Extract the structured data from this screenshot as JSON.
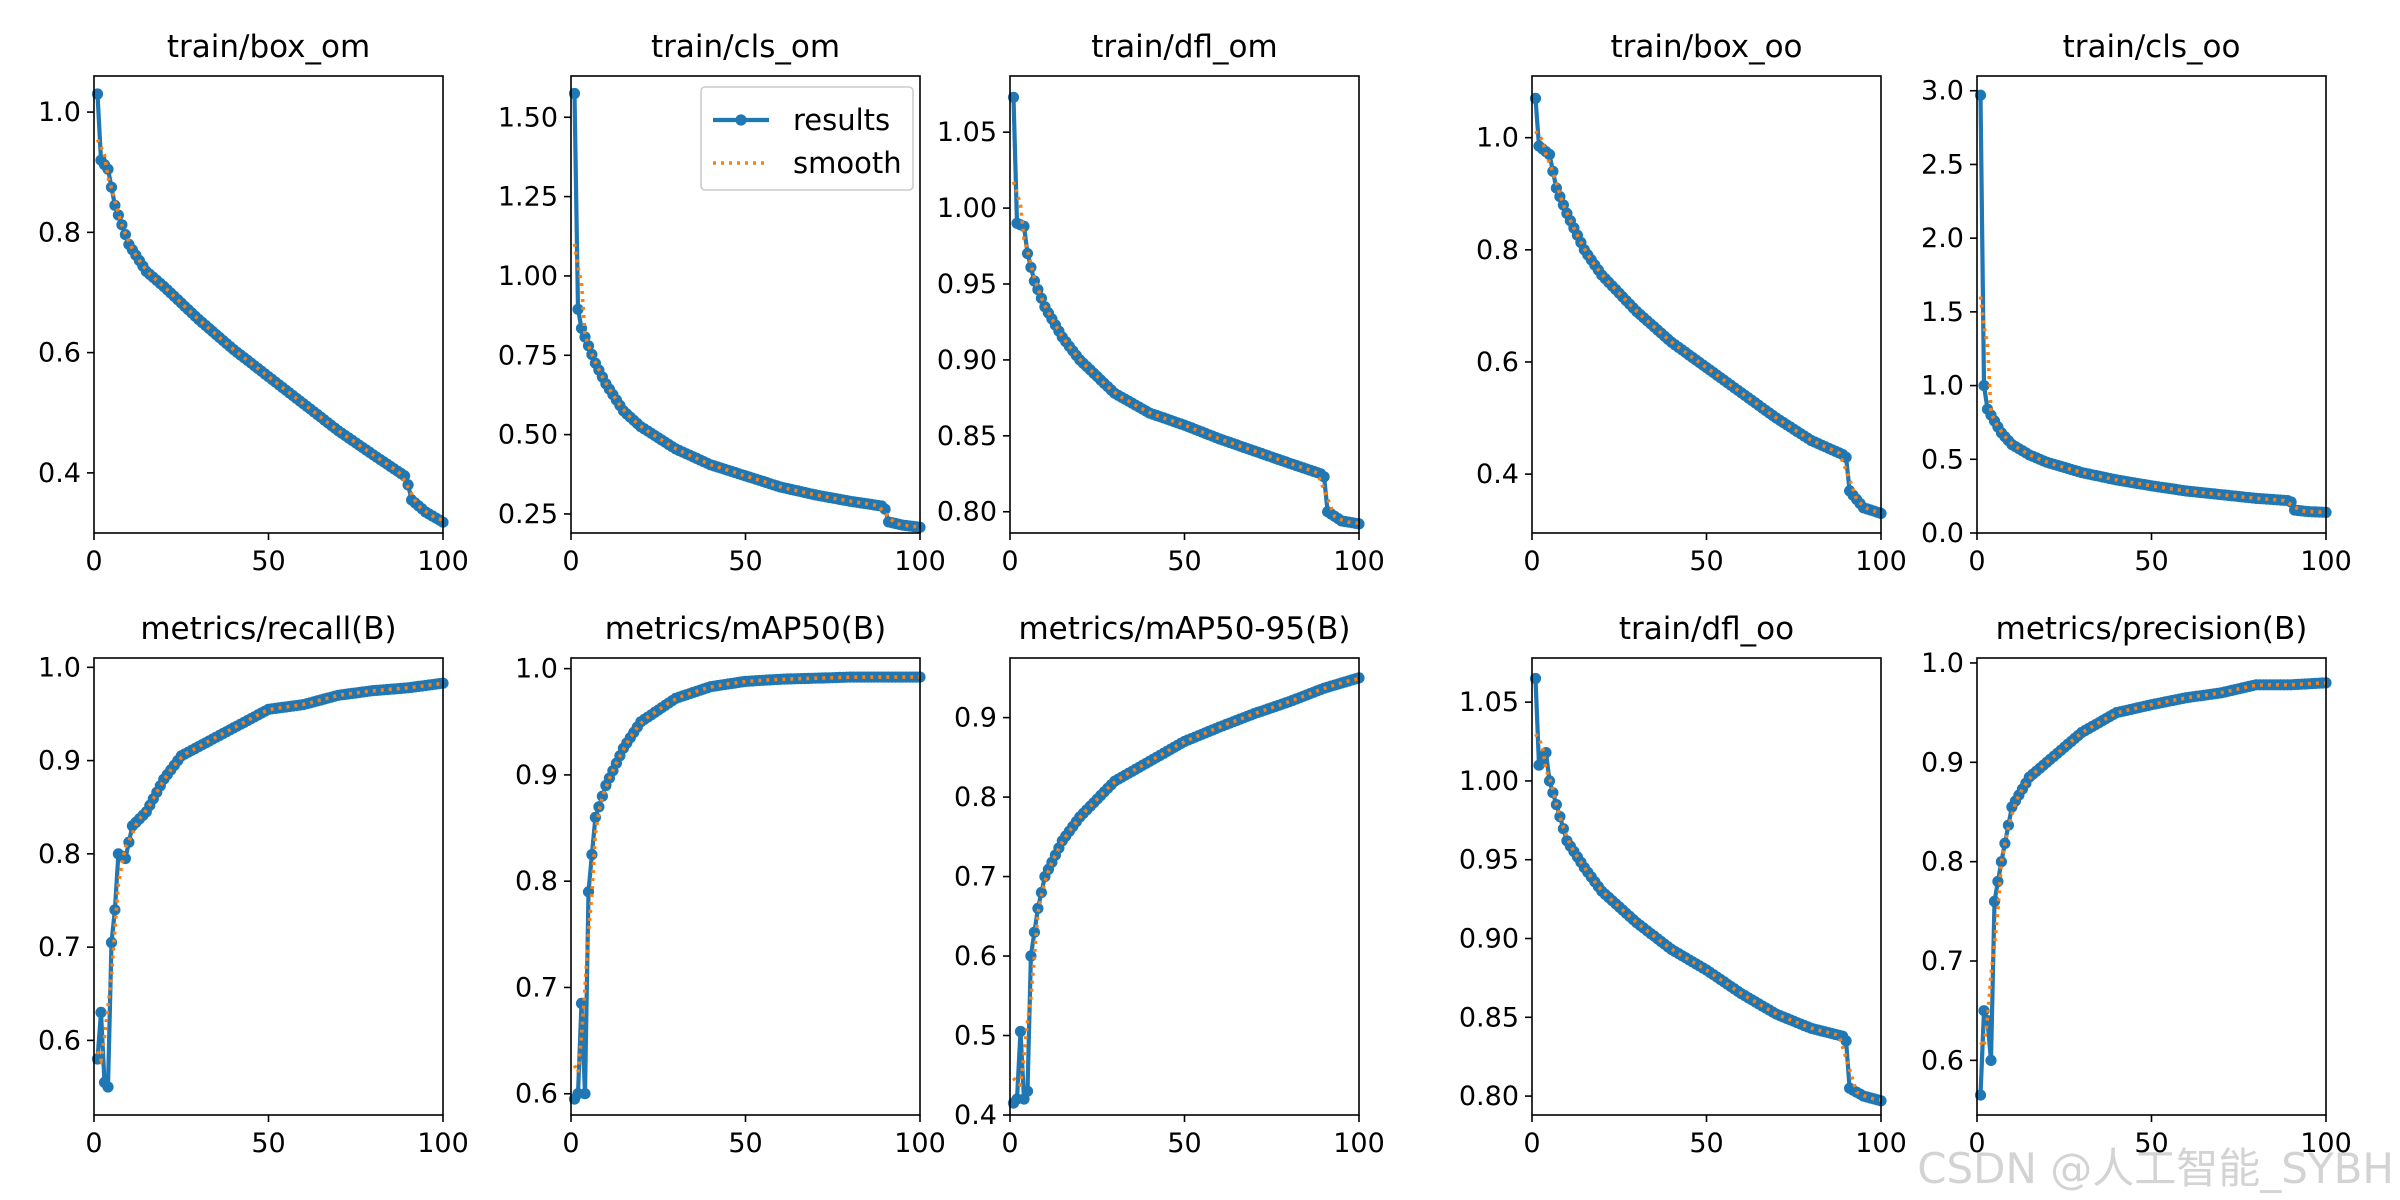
{
  "legend": {
    "results_label": "results",
    "smooth_label": "smooth",
    "panel": "train/cls_om",
    "placement": "upper-right"
  },
  "watermark": "CSDN @人工智能_SYBH",
  "colors": {
    "results": "#1f77b4",
    "smooth": "#ff7f0e",
    "axes": "#000000"
  },
  "chart_data": [
    {
      "type": "line",
      "title": "train/box_om",
      "xlim": [
        0,
        100
      ],
      "ylim": [
        0.3,
        1.06
      ],
      "xticks": [
        0,
        50,
        100
      ],
      "yticks": [
        0.4,
        0.6,
        0.8,
        1.0
      ],
      "ytick_labels": [
        "0.4",
        "0.6",
        "0.8",
        "1.0"
      ],
      "anchors": [
        [
          1,
          1.03
        ],
        [
          2,
          0.92
        ],
        [
          4,
          0.905
        ],
        [
          6,
          0.845
        ],
        [
          10,
          0.78
        ],
        [
          15,
          0.735
        ],
        [
          20,
          0.71
        ],
        [
          30,
          0.655
        ],
        [
          40,
          0.605
        ],
        [
          50,
          0.56
        ],
        [
          60,
          0.515
        ],
        [
          70,
          0.47
        ],
        [
          80,
          0.43
        ],
        [
          89,
          0.395
        ],
        [
          90,
          0.38
        ],
        [
          91,
          0.355
        ],
        [
          95,
          0.335
        ],
        [
          100,
          0.318
        ]
      ]
    },
    {
      "type": "line",
      "title": "train/cls_om",
      "xlim": [
        0,
        100
      ],
      "ylim": [
        0.19,
        1.63
      ],
      "xticks": [
        0,
        50,
        100
      ],
      "yticks": [
        0.25,
        0.5,
        0.75,
        1.0,
        1.25,
        1.5
      ],
      "ytick_labels": [
        "0.25",
        "0.50",
        "0.75",
        "1.00",
        "1.25",
        "1.50"
      ],
      "anchors": [
        [
          1,
          1.575
        ],
        [
          2,
          0.895
        ],
        [
          3,
          0.835
        ],
        [
          5,
          0.78
        ],
        [
          7,
          0.725
        ],
        [
          10,
          0.66
        ],
        [
          15,
          0.575
        ],
        [
          20,
          0.525
        ],
        [
          30,
          0.455
        ],
        [
          40,
          0.405
        ],
        [
          50,
          0.37
        ],
        [
          60,
          0.335
        ],
        [
          70,
          0.31
        ],
        [
          80,
          0.29
        ],
        [
          89,
          0.275
        ],
        [
          90,
          0.265
        ],
        [
          91,
          0.225
        ],
        [
          95,
          0.215
        ],
        [
          100,
          0.208
        ]
      ]
    },
    {
      "type": "line",
      "title": "train/dfl_om",
      "xlim": [
        0,
        100
      ],
      "ylim": [
        0.786,
        1.087
      ],
      "xticks": [
        0,
        50,
        100
      ],
      "yticks": [
        0.8,
        0.85,
        0.9,
        0.95,
        1.0,
        1.05
      ],
      "ytick_labels": [
        "0.80",
        "0.85",
        "0.90",
        "0.95",
        "1.00",
        "1.05"
      ],
      "anchors": [
        [
          1,
          1.073
        ],
        [
          2,
          0.99
        ],
        [
          4,
          0.988
        ],
        [
          5,
          0.97
        ],
        [
          7,
          0.952
        ],
        [
          10,
          0.935
        ],
        [
          15,
          0.915
        ],
        [
          20,
          0.9
        ],
        [
          30,
          0.878
        ],
        [
          40,
          0.865
        ],
        [
          50,
          0.857
        ],
        [
          60,
          0.848
        ],
        [
          70,
          0.84
        ],
        [
          80,
          0.832
        ],
        [
          89,
          0.825
        ],
        [
          90,
          0.823
        ],
        [
          91,
          0.8
        ],
        [
          95,
          0.794
        ],
        [
          100,
          0.792
        ]
      ]
    },
    {
      "type": "line",
      "title": "train/box_oo",
      "xlim": [
        0,
        100
      ],
      "ylim": [
        0.295,
        1.11
      ],
      "xticks": [
        0,
        50,
        100
      ],
      "yticks": [
        0.4,
        0.6,
        0.8,
        1.0
      ],
      "ytick_labels": [
        "0.4",
        "0.6",
        "0.8",
        "1.0"
      ],
      "anchors": [
        [
          1,
          1.07
        ],
        [
          2,
          0.985
        ],
        [
          5,
          0.97
        ],
        [
          7,
          0.91
        ],
        [
          10,
          0.865
        ],
        [
          15,
          0.8
        ],
        [
          20,
          0.755
        ],
        [
          30,
          0.69
        ],
        [
          40,
          0.635
        ],
        [
          50,
          0.59
        ],
        [
          60,
          0.545
        ],
        [
          70,
          0.5
        ],
        [
          80,
          0.46
        ],
        [
          89,
          0.435
        ],
        [
          90,
          0.43
        ],
        [
          91,
          0.37
        ],
        [
          95,
          0.34
        ],
        [
          100,
          0.33
        ]
      ]
    },
    {
      "type": "line",
      "title": "train/cls_oo",
      "xlim": [
        0,
        100
      ],
      "ylim": [
        0.0,
        3.1
      ],
      "xticks": [
        0,
        50,
        100
      ],
      "yticks": [
        0.0,
        0.5,
        1.0,
        1.5,
        2.0,
        2.5,
        3.0
      ],
      "ytick_labels": [
        "0.0",
        "0.5",
        "1.0",
        "1.5",
        "2.0",
        "2.5",
        "3.0"
      ],
      "anchors": [
        [
          1,
          2.97
        ],
        [
          2,
          1.0
        ],
        [
          3,
          0.84
        ],
        [
          5,
          0.76
        ],
        [
          7,
          0.68
        ],
        [
          10,
          0.6
        ],
        [
          15,
          0.53
        ],
        [
          20,
          0.48
        ],
        [
          30,
          0.41
        ],
        [
          40,
          0.36
        ],
        [
          50,
          0.32
        ],
        [
          60,
          0.285
        ],
        [
          70,
          0.26
        ],
        [
          80,
          0.235
        ],
        [
          89,
          0.22
        ],
        [
          90,
          0.21
        ],
        [
          91,
          0.155
        ],
        [
          95,
          0.145
        ],
        [
          100,
          0.14
        ]
      ]
    },
    {
      "type": "line",
      "title": "metrics/recall(B)",
      "xlim": [
        0,
        100
      ],
      "ylim": [
        0.52,
        1.01
      ],
      "xticks": [
        0,
        50,
        100
      ],
      "yticks": [
        0.6,
        0.7,
        0.8,
        0.9,
        1.0
      ],
      "ytick_labels": [
        "0.6",
        "0.7",
        "0.8",
        "0.9",
        "1.0"
      ],
      "anchors": [
        [
          1,
          0.58
        ],
        [
          2,
          0.63
        ],
        [
          3,
          0.555
        ],
        [
          4,
          0.55
        ],
        [
          5,
          0.705
        ],
        [
          6,
          0.74
        ],
        [
          7,
          0.8
        ],
        [
          9,
          0.795
        ],
        [
          11,
          0.83
        ],
        [
          15,
          0.845
        ],
        [
          20,
          0.88
        ],
        [
          25,
          0.905
        ],
        [
          30,
          0.915
        ],
        [
          40,
          0.935
        ],
        [
          50,
          0.955
        ],
        [
          60,
          0.96
        ],
        [
          70,
          0.97
        ],
        [
          80,
          0.975
        ],
        [
          90,
          0.978
        ],
        [
          100,
          0.983
        ]
      ]
    },
    {
      "type": "line",
      "title": "metrics/mAP50(B)",
      "xlim": [
        0,
        100
      ],
      "ylim": [
        0.58,
        1.01
      ],
      "xticks": [
        0,
        50,
        100
      ],
      "yticks": [
        0.6,
        0.7,
        0.8,
        0.9,
        1.0
      ],
      "ytick_labels": [
        "0.6",
        "0.7",
        "0.8",
        "0.9",
        "1.0"
      ],
      "anchors": [
        [
          1,
          0.595
        ],
        [
          2,
          0.6
        ],
        [
          3,
          0.685
        ],
        [
          4,
          0.6
        ],
        [
          5,
          0.79
        ],
        [
          7,
          0.86
        ],
        [
          10,
          0.89
        ],
        [
          15,
          0.925
        ],
        [
          20,
          0.95
        ],
        [
          30,
          0.972
        ],
        [
          40,
          0.983
        ],
        [
          50,
          0.988
        ],
        [
          60,
          0.99
        ],
        [
          70,
          0.991
        ],
        [
          80,
          0.992
        ],
        [
          90,
          0.992
        ],
        [
          100,
          0.992
        ]
      ]
    },
    {
      "type": "line",
      "title": "metrics/mAP50-95(B)",
      "xlim": [
        0,
        100
      ],
      "ylim": [
        0.4,
        0.975
      ],
      "xticks": [
        0,
        50,
        100
      ],
      "yticks": [
        0.4,
        0.5,
        0.6,
        0.7,
        0.8,
        0.9
      ],
      "ytick_labels": [
        "0.4",
        "0.5",
        "0.6",
        "0.7",
        "0.8",
        "0.9"
      ],
      "anchors": [
        [
          1,
          0.415
        ],
        [
          2,
          0.42
        ],
        [
          3,
          0.505
        ],
        [
          4,
          0.42
        ],
        [
          5,
          0.43
        ],
        [
          6,
          0.6
        ],
        [
          8,
          0.66
        ],
        [
          10,
          0.7
        ],
        [
          15,
          0.745
        ],
        [
          20,
          0.775
        ],
        [
          30,
          0.82
        ],
        [
          40,
          0.845
        ],
        [
          50,
          0.87
        ],
        [
          60,
          0.888
        ],
        [
          70,
          0.905
        ],
        [
          80,
          0.92
        ],
        [
          90,
          0.937
        ],
        [
          100,
          0.95
        ]
      ]
    },
    {
      "type": "line",
      "title": "train/dfl_oo",
      "xlim": [
        0,
        100
      ],
      "ylim": [
        0.788,
        1.078
      ],
      "xticks": [
        0,
        50,
        100
      ],
      "yticks": [
        0.8,
        0.85,
        0.9,
        0.95,
        1.0,
        1.05
      ],
      "ytick_labels": [
        "0.80",
        "0.85",
        "0.90",
        "0.95",
        "1.00",
        "1.05"
      ],
      "anchors": [
        [
          1,
          1.065
        ],
        [
          2,
          1.01
        ],
        [
          4,
          1.018
        ],
        [
          5,
          1.0
        ],
        [
          7,
          0.985
        ],
        [
          10,
          0.962
        ],
        [
          15,
          0.945
        ],
        [
          20,
          0.93
        ],
        [
          30,
          0.91
        ],
        [
          40,
          0.893
        ],
        [
          50,
          0.88
        ],
        [
          60,
          0.865
        ],
        [
          70,
          0.852
        ],
        [
          80,
          0.843
        ],
        [
          89,
          0.838
        ],
        [
          90,
          0.835
        ],
        [
          91,
          0.805
        ],
        [
          95,
          0.8
        ],
        [
          100,
          0.797
        ]
      ]
    },
    {
      "type": "line",
      "title": "metrics/precision(B)",
      "xlim": [
        0,
        100
      ],
      "ylim": [
        0.545,
        1.005
      ],
      "xticks": [
        0,
        50,
        100
      ],
      "yticks": [
        0.6,
        0.7,
        0.8,
        0.9,
        1.0
      ],
      "ytick_labels": [
        "0.6",
        "0.7",
        "0.8",
        "0.9",
        "1.0"
      ],
      "anchors": [
        [
          1,
          0.565
        ],
        [
          2,
          0.65
        ],
        [
          3,
          0.64
        ],
        [
          4,
          0.6
        ],
        [
          5,
          0.76
        ],
        [
          7,
          0.8
        ],
        [
          10,
          0.855
        ],
        [
          15,
          0.885
        ],
        [
          20,
          0.9
        ],
        [
          30,
          0.93
        ],
        [
          40,
          0.95
        ],
        [
          50,
          0.958
        ],
        [
          60,
          0.965
        ],
        [
          70,
          0.97
        ],
        [
          80,
          0.978
        ],
        [
          90,
          0.978
        ],
        [
          100,
          0.98
        ]
      ]
    }
  ]
}
